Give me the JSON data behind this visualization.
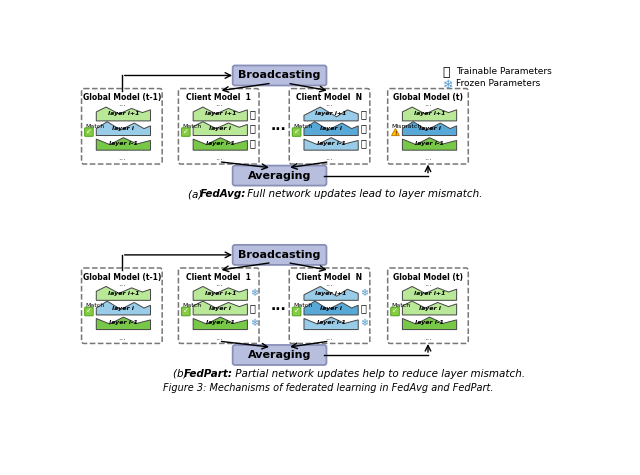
{
  "bg_color": "#ffffff",
  "broadcast_fill": "#b8bede",
  "broadcast_edge": "#8890b8",
  "label_a": "(a) FedAvg: Full network updates lead to layer mismatch.",
  "label_b": "(b) FedPart: Partial network updates help to reduce layer mismatch.",
  "caption": "Figure 3: Mechanisms of federated learning in FedAvg and FedPart.",
  "green_light": "#b8e898",
  "green_dark": "#78c848",
  "blue_light": "#98cce8",
  "blue_dark": "#58a8d8",
  "check_fill": "#88cc44",
  "check_edge": "#55aa22",
  "warn_fill": "#ffcc00",
  "warn_edge": "#cc8800",
  "box_edge": "#777777",
  "trainable_label": "Trainable Parameters",
  "frozen_label": "Frozen Parameters"
}
